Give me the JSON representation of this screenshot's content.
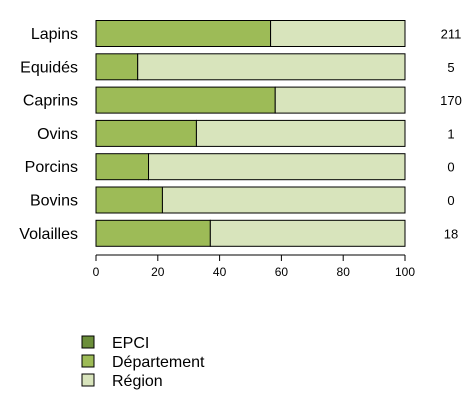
{
  "chart_data": {
    "type": "bar",
    "orientation": "horizontal",
    "stacked": true,
    "categories": [
      "Lapins",
      "Equidés",
      "Caprins",
      "Ovins",
      "Porcins",
      "Bovins",
      "Volailles"
    ],
    "right_labels": [
      "211",
      "5",
      "170",
      "1",
      "0",
      "0",
      "18"
    ],
    "xlim": [
      0,
      100
    ],
    "x_ticks": [
      0,
      20,
      40,
      60,
      80,
      100
    ],
    "x_tick_labels": [
      "0",
      "20",
      "40",
      "60",
      "80",
      "100"
    ],
    "grid": false,
    "legend_position": "bottom-left",
    "series": [
      {
        "name": "EPCI",
        "color": "#6b8e3a",
        "values": [
          0,
          0,
          0,
          0,
          0,
          0,
          0
        ]
      },
      {
        "name": "Département",
        "color": "#9dbb57",
        "values": [
          56.5,
          13.5,
          58,
          32.5,
          17,
          21.5,
          37
        ]
      },
      {
        "name": "Région",
        "color": "#d8e4bc",
        "values": [
          43.5,
          86.5,
          42,
          67.5,
          83,
          78.5,
          63
        ]
      }
    ]
  }
}
